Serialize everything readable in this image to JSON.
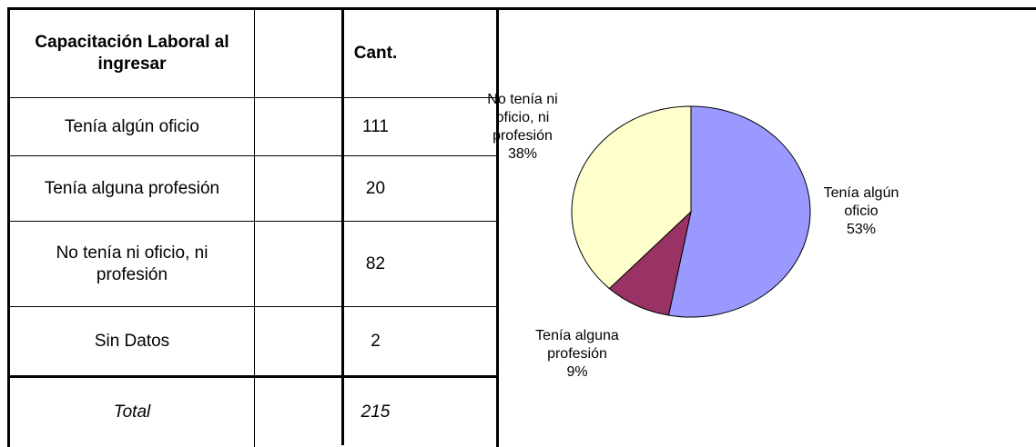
{
  "table": {
    "header": [
      "Capacitación Laboral al ingresar",
      "Cant."
    ],
    "rows": [
      [
        "Tenía algún oficio",
        "111"
      ],
      [
        "Tenía alguna profesión",
        "20"
      ],
      [
        "No tenía ni oficio, ni profesión",
        "82"
      ],
      [
        "Sin Datos",
        "2"
      ]
    ],
    "total": [
      "Total",
      "215"
    ]
  },
  "chart_data": {
    "type": "pie",
    "categories": [
      "Tenía algún oficio",
      "Tenía alguna profesión",
      "No tenía ni oficio, ni profesión"
    ],
    "values": [
      53,
      9,
      38
    ],
    "value_labels": [
      "53%",
      "9%",
      "38%"
    ],
    "colors": [
      "#9999ff",
      "#993366",
      "#ffffcc"
    ]
  }
}
